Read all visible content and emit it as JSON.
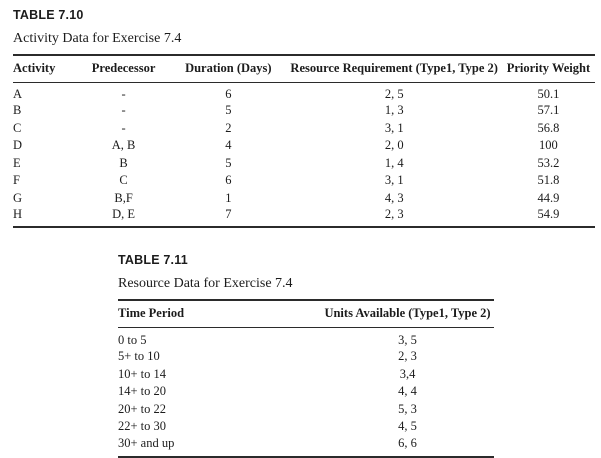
{
  "page": {
    "background": "#ffffff",
    "text_color": "#1c1c1c",
    "rule_color": "#2b2b2b"
  },
  "table1": {
    "label": "TABLE 7.10",
    "caption": "Activity Data for Exercise 7.4",
    "columns": [
      "Activity",
      "Predecessor",
      "Duration (Days)",
      "Resource Requirement (Type1, Type 2)",
      "Priority Weight"
    ],
    "rows": [
      [
        "A",
        "-",
        "6",
        "2, 5",
        "50.1"
      ],
      [
        "B",
        "-",
        "5",
        "1, 3",
        "57.1"
      ],
      [
        "C",
        "-",
        "2",
        "3, 1",
        "56.8"
      ],
      [
        "D",
        "A, B",
        "4",
        "2, 0",
        "100"
      ],
      [
        "E",
        "B",
        "5",
        "1, 4",
        "53.2"
      ],
      [
        "F",
        "C",
        "6",
        "3, 1",
        "51.8"
      ],
      [
        "G",
        "B,F",
        "1",
        "4, 3",
        "44.9"
      ],
      [
        "H",
        "D, E",
        "7",
        "2, 3",
        "54.9"
      ]
    ]
  },
  "table2": {
    "label": "TABLE 7.11",
    "caption": "Resource Data for Exercise 7.4",
    "columns": [
      "Time Period",
      "Units Available (Type1, Type 2)"
    ],
    "rows": [
      [
        "0 to 5",
        "3, 5"
      ],
      [
        "5+ to 10",
        "2, 3"
      ],
      [
        "10+ to 14",
        "3,4"
      ],
      [
        "14+ to 20",
        "4, 4"
      ],
      [
        "20+ to 22",
        "5, 3"
      ],
      [
        "22+ to 30",
        "4, 5"
      ],
      [
        "30+ and up",
        "6, 6"
      ]
    ]
  }
}
